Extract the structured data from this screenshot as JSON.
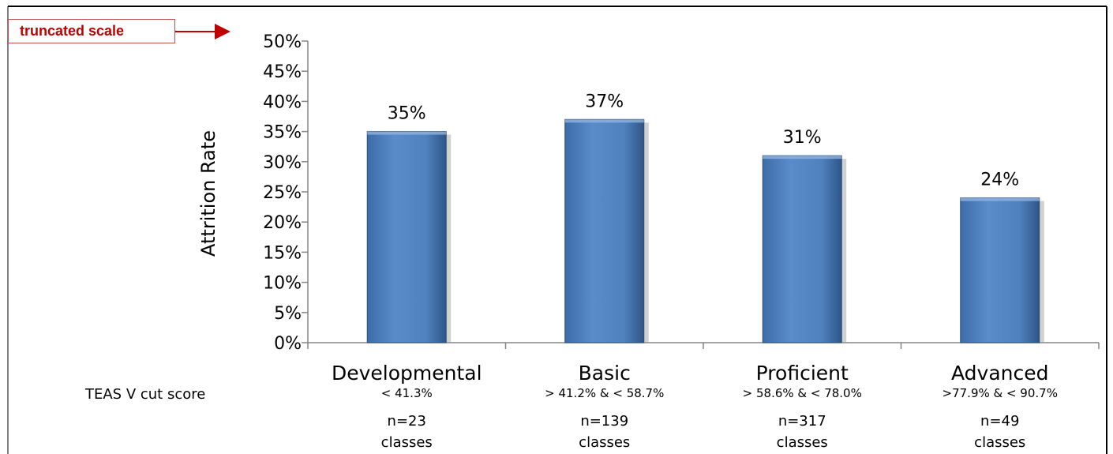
{
  "annotation": {
    "text": "truncated scale",
    "color": "#c00000"
  },
  "row_label": "TEAS V cut score",
  "categories_detail": [
    {
      "range": "< 41.3%",
      "n": "n=23",
      "unit": "classes"
    },
    {
      "range": "> 41.2% & < 58.7%",
      "n": "n=139",
      "unit": "classes"
    },
    {
      "range": "> 58.6% & < 78.0%",
      "n": "n=317",
      "unit": "classes"
    },
    {
      "range": ">77.9% & < 90.7%",
      "n": "n=49",
      "unit": "classes"
    }
  ],
  "colors": {
    "bar": "#4f81bd",
    "bar_light": "#6d9ad4",
    "bar_dark": "#2c4d75",
    "axis": "#868686"
  },
  "chart_data": {
    "type": "bar",
    "categories": [
      "Developmental",
      "Basic",
      "Proficient",
      "Advanced"
    ],
    "values": [
      35,
      37,
      31,
      24
    ],
    "data_labels": [
      "35%",
      "37%",
      "31%",
      "24%"
    ],
    "ylabel": "Attrition Rate",
    "ylim": [
      0,
      50
    ],
    "yticks": [
      0,
      5,
      10,
      15,
      20,
      25,
      30,
      35,
      40,
      45,
      50
    ],
    "ytick_labels": [
      "0%",
      "5%",
      "10%",
      "15%",
      "20%",
      "25%",
      "30%",
      "35%",
      "40%",
      "45%",
      "50%"
    ],
    "grid": false,
    "legend": "none"
  }
}
